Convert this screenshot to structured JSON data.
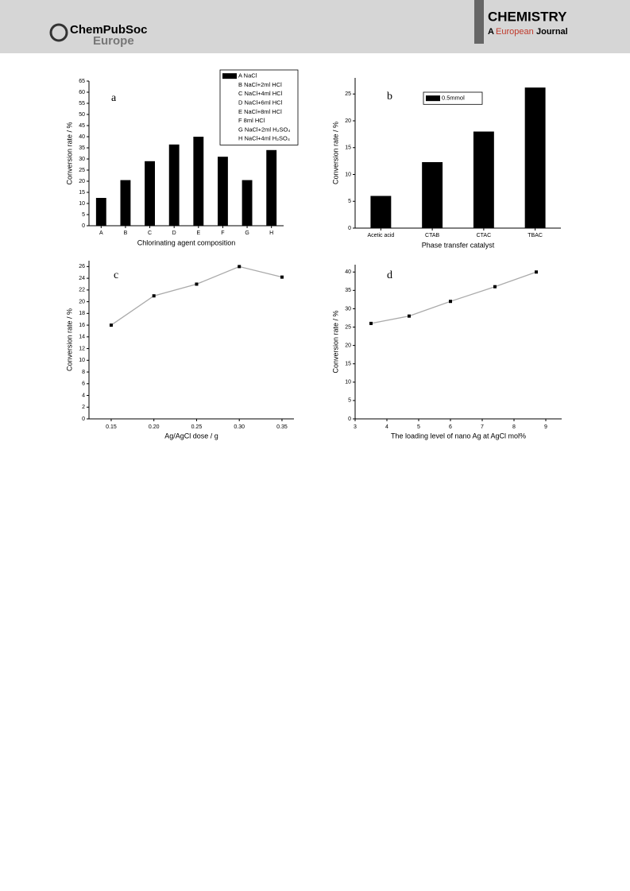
{
  "header": {
    "publisher": "ChemPubSoc",
    "publisher_sub": "Europe",
    "journal": "CHEMISTRY",
    "journal_a": "A",
    "journal_european": "European",
    "journal_journal": "Journal"
  },
  "chart_data": [
    {
      "type": "bar",
      "annotation": "a",
      "xlabel": "Chlorinating agent composition",
      "ylabel": "Conversion rate / %",
      "categories": [
        "A",
        "B",
        "C",
        "D",
        "E",
        "F",
        "G",
        "H"
      ],
      "values": [
        12.5,
        20.5,
        29,
        36.5,
        40,
        31,
        20.5,
        34
      ],
      "color": "#000000",
      "legend": [
        "A NaCl",
        "B NaCl+2ml HCl",
        "C NaCl+4ml HCl",
        "D NaCl+6ml HCl",
        "E NaCl+8ml HCl",
        "F 8ml HCl",
        "G NaCl+2ml H₂SO₄",
        "H NaCl+4ml H₂SO₄"
      ],
      "ylim": [
        0,
        65
      ],
      "yticks": [
        0,
        5,
        10,
        15,
        20,
        25,
        30,
        35,
        40,
        45,
        50,
        55,
        60,
        65
      ]
    },
    {
      "type": "bar",
      "annotation": "b",
      "xlabel": "Phase transfer catalyst",
      "ylabel": "Conversion rate / %",
      "categories": [
        "Acetic acid",
        "CTAB",
        "CTAC",
        "TBAC"
      ],
      "values": [
        6,
        12.3,
        18,
        26.2
      ],
      "color": "#000000",
      "legend": [
        "0.5mmol"
      ],
      "ylim": [
        0,
        28
      ],
      "yticks": [
        0,
        5,
        10,
        15,
        20,
        25
      ]
    },
    {
      "type": "line",
      "annotation": "c",
      "xlabel": "Ag/AgCl dose / g",
      "ylabel": "Conversion rate / %",
      "x": [
        0.15,
        0.2,
        0.25,
        0.3,
        0.35
      ],
      "values": [
        16,
        21,
        23,
        26,
        24.2
      ],
      "color": "#aaaaaa",
      "marker_color": "#000000",
      "xlim": [
        0.124,
        0.364
      ],
      "xticks": [
        0.15,
        {
          "value": 0.2,
          "label": "0.20"
        },
        0.25,
        {
          "value": 0.3,
          "label": "0.30"
        },
        0.35
      ],
      "ylim": [
        0,
        27
      ],
      "yticks": [
        0,
        2,
        4,
        6,
        8,
        10,
        12,
        14,
        16,
        18,
        20,
        22,
        24,
        26
      ]
    },
    {
      "type": "line",
      "annotation": "d",
      "xlabel": "The loading level of nano Ag at AgCl mol%",
      "ylabel": "Conversion rate / %",
      "x": [
        3.5,
        4.7,
        6,
        7.4,
        8.7
      ],
      "values": [
        26,
        28,
        32,
        36,
        40
      ],
      "color": "#aaaaaa",
      "marker_color": "#000000",
      "xlim": [
        3,
        9.5
      ],
      "xticks": [
        3,
        4,
        5,
        6,
        7,
        8,
        9
      ],
      "ylim": [
        0,
        42
      ],
      "yticks": [
        0,
        5,
        10,
        15,
        20,
        25,
        30,
        35,
        40
      ]
    }
  ]
}
